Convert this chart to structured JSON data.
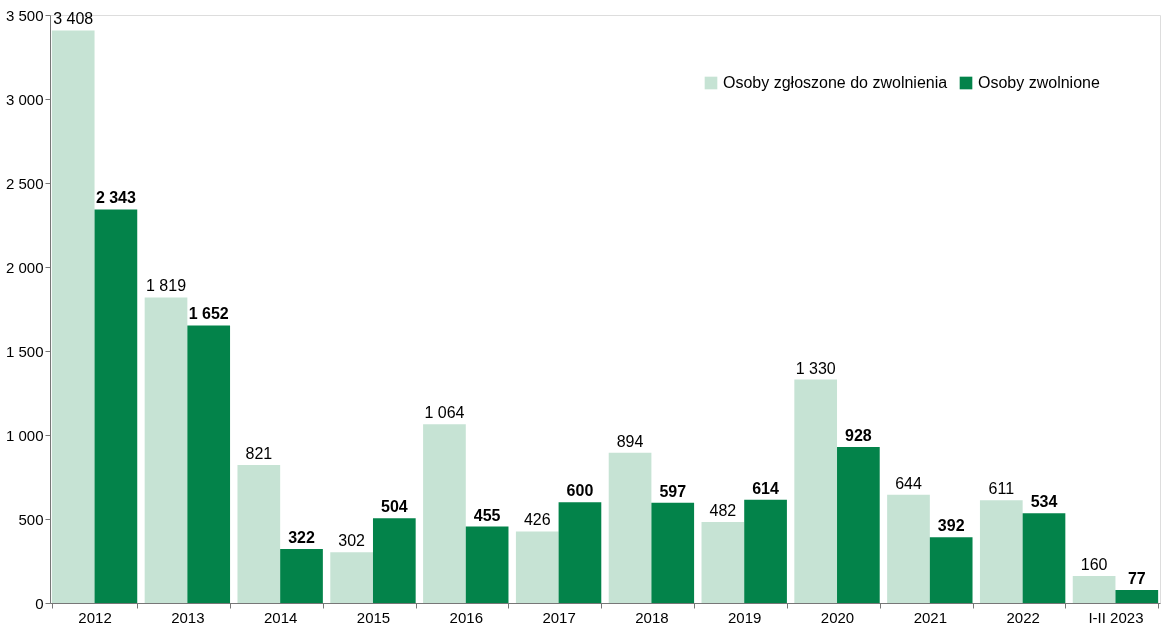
{
  "chart_data": {
    "type": "bar",
    "categories": [
      "2012",
      "2013",
      "2014",
      "2015",
      "2016",
      "2017",
      "2018",
      "2019",
      "2020",
      "2021",
      "2022",
      "I-II 2023"
    ],
    "series": [
      {
        "name": "Osoby zgłoszone do zwolnienia",
        "color": "#c6e3d4",
        "values": [
          3408,
          1819,
          821,
          302,
          1064,
          426,
          894,
          482,
          1330,
          644,
          611,
          160
        ],
        "value_labels": [
          "3 408",
          "1 819",
          "821",
          "302",
          "1 064",
          "426",
          "894",
          "482",
          "1 330",
          "644",
          "611",
          "160"
        ]
      },
      {
        "name": "Osoby zwolnione",
        "color": "#03834a",
        "values": [
          2343,
          1652,
          322,
          504,
          455,
          600,
          597,
          614,
          928,
          392,
          534,
          77
        ],
        "value_labels": [
          "2 343",
          "1 652",
          "322",
          "504",
          "455",
          "600",
          "597",
          "614",
          "928",
          "392",
          "534",
          "77"
        ]
      }
    ],
    "ylim": [
      0,
      3500
    ],
    "yticks": [
      {
        "value": 0,
        "label": "0"
      },
      {
        "value": 500,
        "label": "500"
      },
      {
        "value": 1000,
        "label": "1 000"
      },
      {
        "value": 1500,
        "label": "1 500"
      },
      {
        "value": 2000,
        "label": "2 000"
      },
      {
        "value": 2500,
        "label": "2 500"
      },
      {
        "value": 3000,
        "label": "3 000"
      },
      {
        "value": 3500,
        "label": "3 500"
      }
    ],
    "grid": false,
    "legend": "top right"
  }
}
